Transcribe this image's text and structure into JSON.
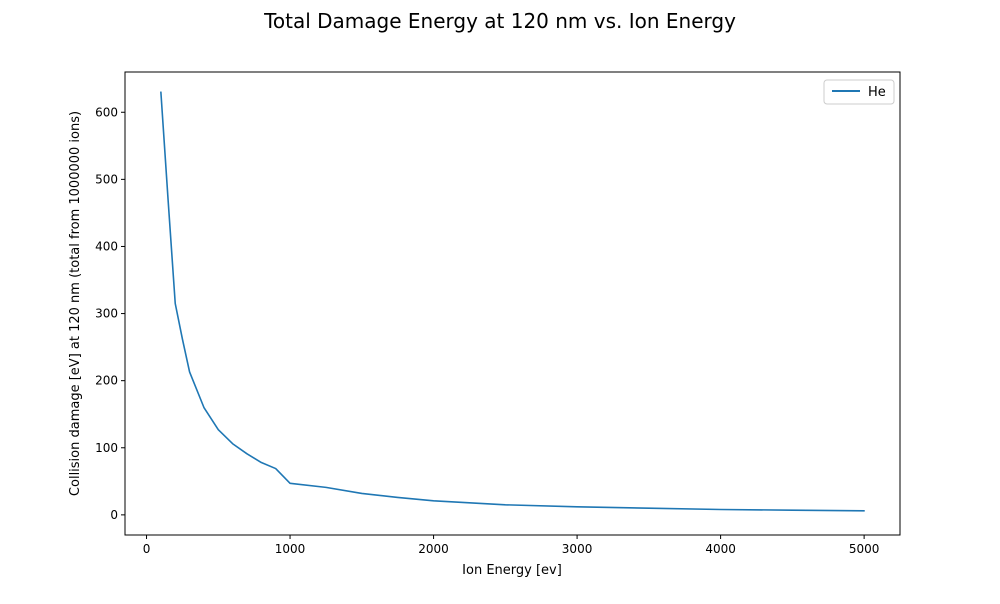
{
  "chart_data": {
    "type": "line",
    "title": "Total Damage Energy at 120 nm vs. Ion Energy",
    "xlabel": "Ion Energy [ev]",
    "ylabel": "Collision damage [eV] at 120 nm (total from 1000000 ions)",
    "xlim": [
      -150,
      5250
    ],
    "ylim": [
      -30,
      660
    ],
    "xticks": [
      0,
      1000,
      2000,
      3000,
      4000,
      5000
    ],
    "yticks": [
      0,
      100,
      200,
      300,
      400,
      500,
      600
    ],
    "grid": false,
    "legend_position": "top-right",
    "series": [
      {
        "name": "He",
        "color": "#1f77b4",
        "x": [
          100,
          150,
          200,
          250,
          300,
          400,
          500,
          600,
          700,
          800,
          900,
          1000,
          1250,
          1500,
          1750,
          2000,
          2500,
          3000,
          3500,
          4000,
          4500,
          5000
        ],
        "y": [
          630,
          470,
          315,
          262,
          213,
          160,
          127,
          106,
          91,
          78,
          69,
          47,
          41,
          32,
          26,
          21,
          15,
          12,
          10,
          8,
          7,
          6
        ]
      }
    ]
  }
}
